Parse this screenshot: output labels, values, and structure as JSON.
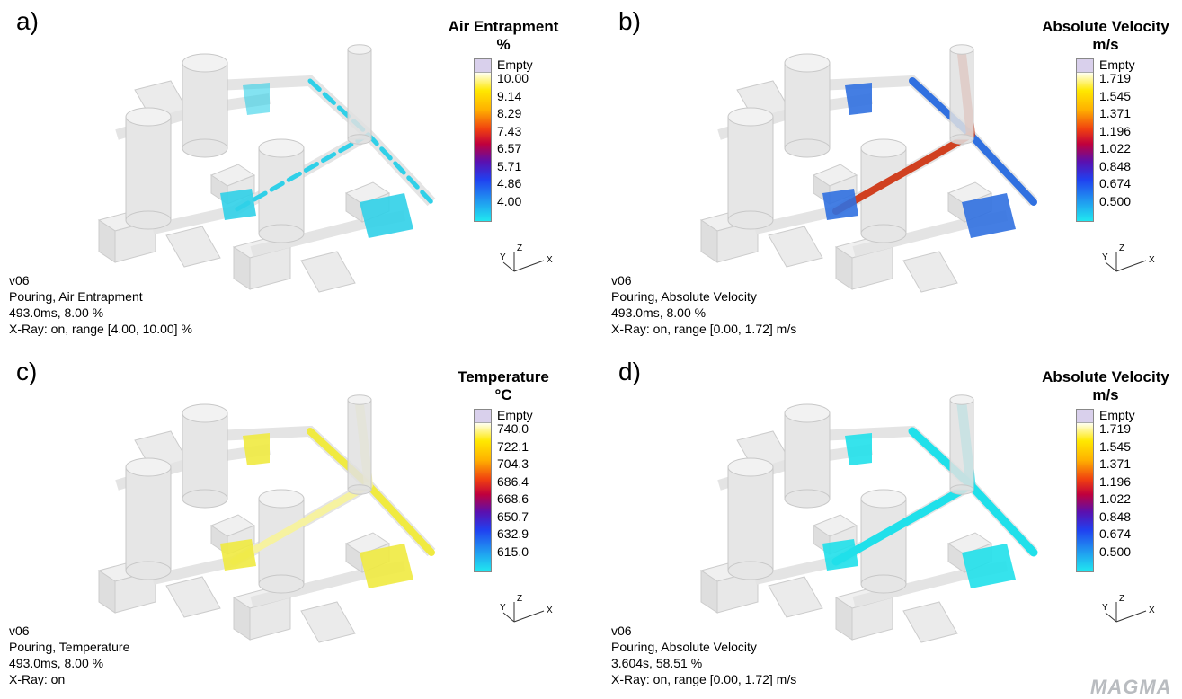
{
  "panels": [
    {
      "label": "a)",
      "legend": {
        "title": "Air Entrapment",
        "unit": "%",
        "entries": [
          "Empty",
          "10.00",
          "9.14",
          "8.29",
          "7.43",
          "6.57",
          "5.71",
          "4.86",
          "4.00"
        ]
      },
      "info": [
        "v06",
        "Pouring, Air Entrapment",
        "493.0ms, 8.00 %",
        "X-Ray: on, range [4.00, 10.00] %"
      ],
      "axes": [
        "Y",
        "Z",
        "X"
      ]
    },
    {
      "label": "b)",
      "legend": {
        "title": "Absolute Velocity",
        "unit": "m/s",
        "entries": [
          "Empty",
          "1.719",
          "1.545",
          "1.371",
          "1.196",
          "1.022",
          "0.848",
          "0.674",
          "0.500"
        ]
      },
      "info": [
        "v06",
        "Pouring, Absolute Velocity",
        "493.0ms, 8.00 %",
        "X-Ray: on, range [0.00, 1.72] m/s"
      ],
      "axes": [
        "Y",
        "Z",
        "X"
      ]
    },
    {
      "label": "c)",
      "legend": {
        "title": "Temperature",
        "unit": "°C",
        "entries": [
          "Empty",
          "740.0",
          "722.1",
          "704.3",
          "686.4",
          "668.6",
          "650.7",
          "632.9",
          "615.0"
        ]
      },
      "info": [
        "v06",
        "Pouring, Temperature",
        "493.0ms, 8.00 %",
        "X-Ray: on"
      ],
      "axes": [
        "Y",
        "Z",
        "X"
      ]
    },
    {
      "label": "d)",
      "legend": {
        "title": "Absolute Velocity",
        "unit": "m/s",
        "entries": [
          "Empty",
          "1.719",
          "1.545",
          "1.371",
          "1.196",
          "1.022",
          "0.848",
          "0.674",
          "0.500"
        ]
      },
      "info": [
        "v06",
        "Pouring, Absolute Velocity",
        "3.604s, 58.51 %",
        "X-Ray: on, range [0.00, 1.72] m/s"
      ],
      "axes": [
        "Y",
        "Z",
        "X"
      ]
    }
  ],
  "logo": "MAGMA"
}
